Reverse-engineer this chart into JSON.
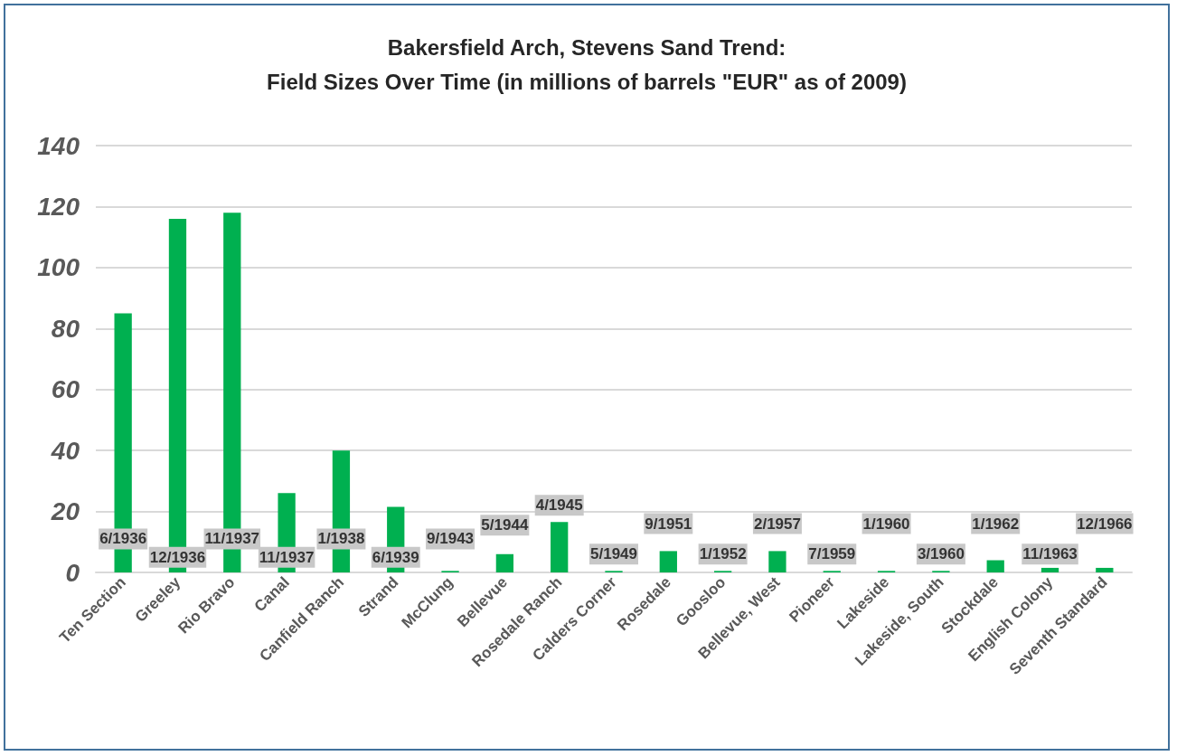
{
  "chart_data": {
    "type": "bar",
    "title": "Bakersfield Arch, Stevens Sand Trend:\nField Sizes Over Time (in millions of barrels \"EUR\" as of 2009)",
    "categories": [
      "Ten Section",
      "Greeley",
      "Rio Bravo",
      "Canal",
      "Canfield Ranch",
      "Strand",
      "McClung",
      "Bellevue",
      "Rosedale Ranch",
      "Calders Corner",
      "Rosedale",
      "Goosloo",
      "Bellevue, West",
      "Pioneer",
      "Lakeside",
      "Lakeside, South",
      "Stockdale",
      "English Colony",
      "Seventh Standard"
    ],
    "values": [
      85,
      116,
      118,
      26,
      40,
      21.5,
      0.5,
      6,
      16.5,
      0.5,
      7,
      0.5,
      7,
      0.5,
      0.5,
      0.5,
      4,
      1.5,
      1.5
    ],
    "color": "#00b050",
    "ylim": [
      0,
      140
    ],
    "yticks": [
      0,
      20,
      40,
      60,
      80,
      100,
      120,
      140
    ],
    "grid": "y",
    "annotations": [
      "6/1936",
      "12/1936",
      "11/1937",
      "11/1937",
      "1/1938",
      "6/1939",
      "9/1943",
      "5/1944",
      "4/1945",
      "5/1949",
      "9/1951",
      "1/1952",
      "2/1957",
      "7/1959",
      "1/1960",
      "3/1960",
      "1/1962",
      "11/1963",
      "12/1966"
    ]
  }
}
